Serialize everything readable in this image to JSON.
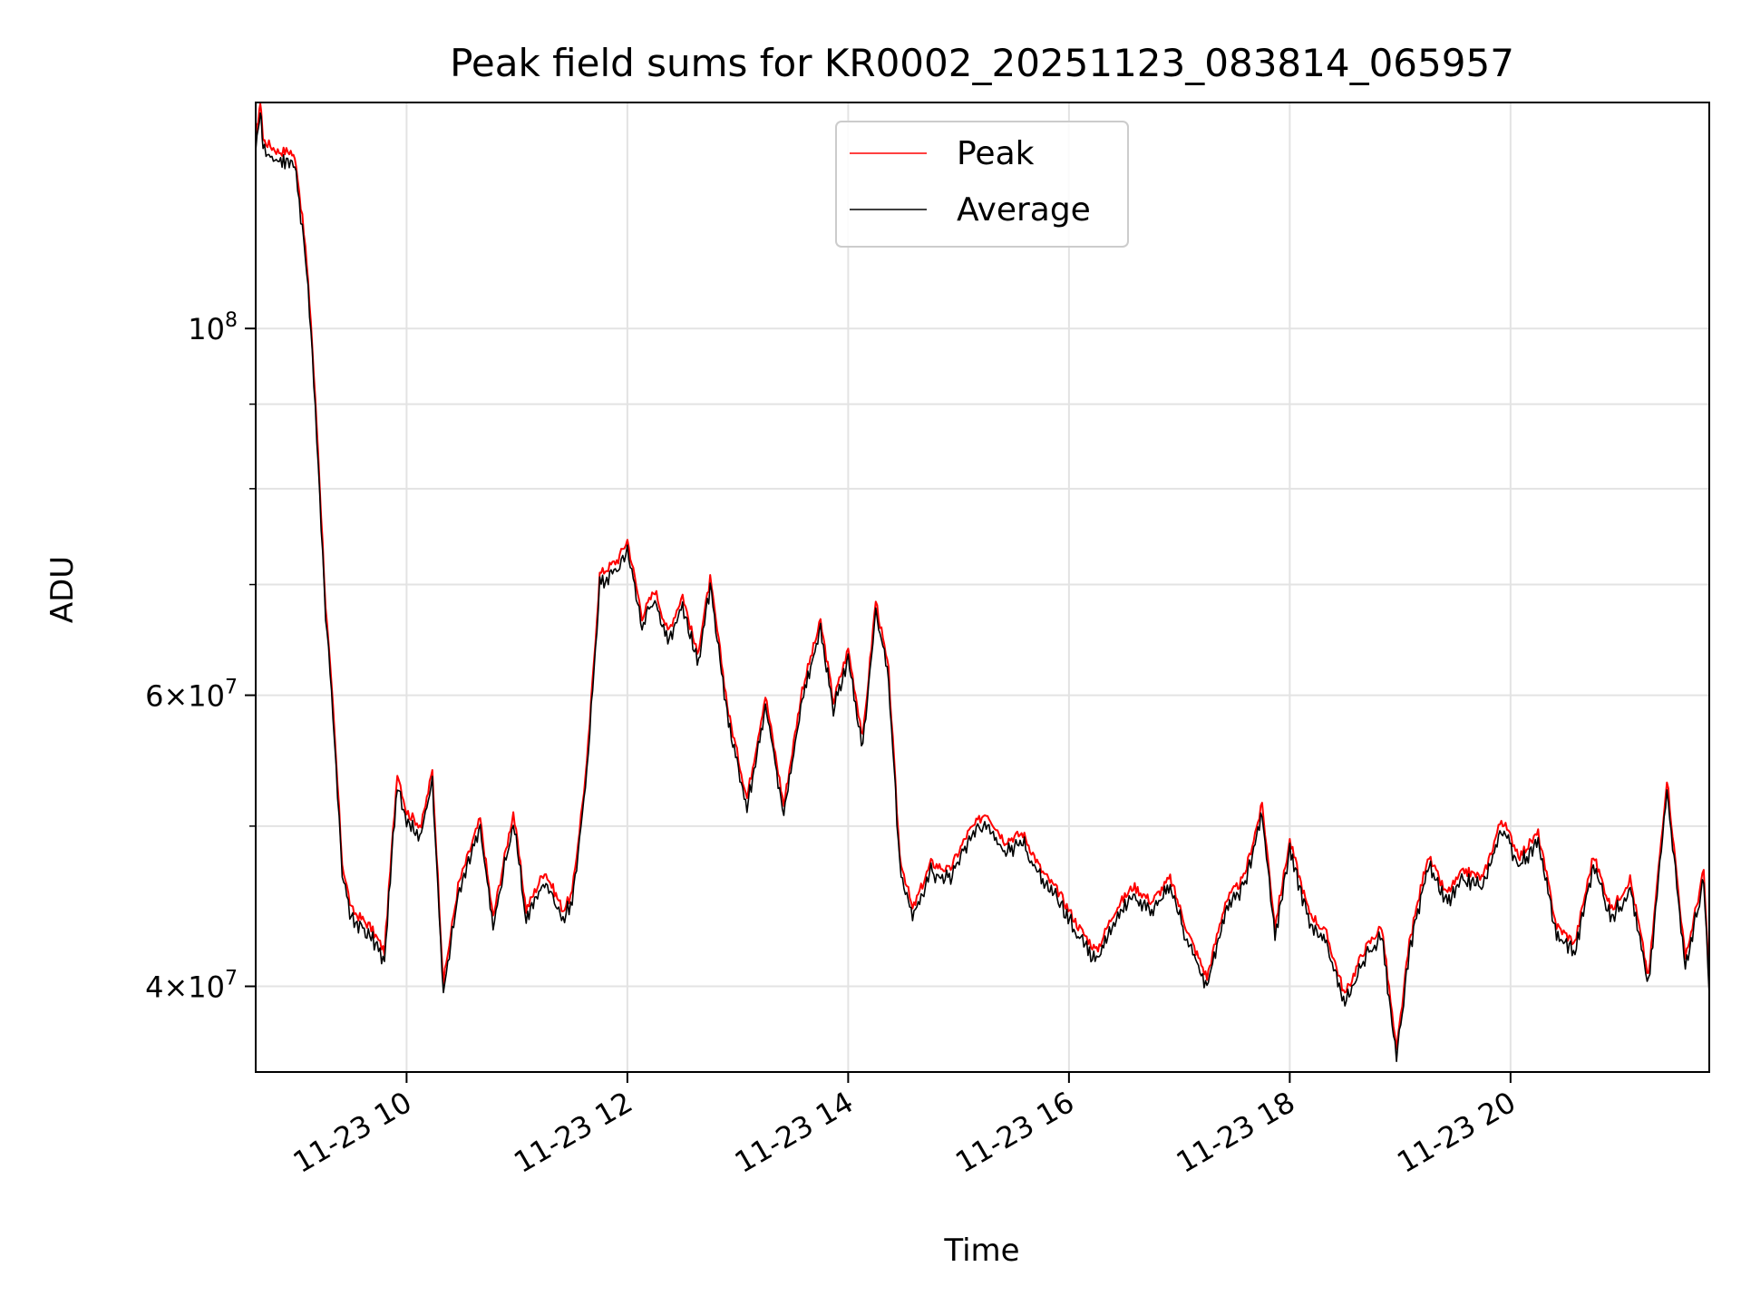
{
  "chart_data": {
    "type": "line",
    "title": "Peak field sums for KR0002_20251123_083814_065957",
    "xlabel": "Time",
    "ylabel": "ADU",
    "yscale": "log",
    "xlim": [
      "2025-11-23 08:38",
      "2025-11-23 21:48"
    ],
    "ylim": [
      35500000,
      137000000
    ],
    "grid": true,
    "legend_position": "top-center",
    "x_ticks": [
      {
        "value": "2025-11-23 10:00",
        "label": "11-23 10"
      },
      {
        "value": "2025-11-23 12:00",
        "label": "11-23 12"
      },
      {
        "value": "2025-11-23 14:00",
        "label": "11-23 14"
      },
      {
        "value": "2025-11-23 16:00",
        "label": "11-23 16"
      },
      {
        "value": "2025-11-23 18:00",
        "label": "11-23 18"
      },
      {
        "value": "2025-11-23 20:00",
        "label": "11-23 20"
      }
    ],
    "y_major_ticks": [
      {
        "value": 40000000,
        "base": "4",
        "exp": "7"
      },
      {
        "value": 60000000,
        "base": "6",
        "exp": "7"
      },
      {
        "value": 100000000,
        "base": "",
        "exp": "8"
      }
    ],
    "y_minor_ticks": [
      50000000,
      70000000,
      80000000,
      90000000
    ],
    "series": [
      {
        "name": "Peak",
        "color": "#ff0000",
        "points": [
          [
            "2025-11-23 08:38",
            130000000
          ],
          [
            "2025-11-23 08:40",
            136000000
          ],
          [
            "2025-11-23 08:41",
            136000000
          ],
          [
            "2025-11-23 08:42",
            130000000
          ],
          [
            "2025-11-23 08:50",
            128000000
          ],
          [
            "2025-11-23 08:57",
            128000000
          ],
          [
            "2025-11-23 09:00",
            126000000
          ],
          [
            "2025-11-23 09:05",
            112000000
          ],
          [
            "2025-11-23 09:08",
            101000000
          ],
          [
            "2025-11-23 09:12",
            84000000
          ],
          [
            "2025-11-23 09:16",
            68000000
          ],
          [
            "2025-11-23 09:20",
            59000000
          ],
          [
            "2025-11-23 09:25",
            47500000
          ],
          [
            "2025-11-23 09:30",
            44500000
          ],
          [
            "2025-11-23 09:40",
            43500000
          ],
          [
            "2025-11-23 09:48",
            42000000
          ],
          [
            "2025-11-23 09:55",
            54000000
          ],
          [
            "2025-11-23 10:00",
            51000000
          ],
          [
            "2025-11-23 10:08",
            50000000
          ],
          [
            "2025-11-23 10:14",
            54000000
          ],
          [
            "2025-11-23 10:20",
            40200000
          ],
          [
            "2025-11-23 10:28",
            46000000
          ],
          [
            "2025-11-23 10:40",
            50500000
          ],
          [
            "2025-11-23 10:47",
            44000000
          ],
          [
            "2025-11-23 10:58",
            51000000
          ],
          [
            "2025-11-23 11:05",
            44500000
          ],
          [
            "2025-11-23 11:15",
            47000000
          ],
          [
            "2025-11-23 11:25",
            44500000
          ],
          [
            "2025-11-23 11:30",
            45500000
          ],
          [
            "2025-11-23 11:38",
            54500000
          ],
          [
            "2025-11-23 11:45",
            71000000
          ],
          [
            "2025-11-23 11:55",
            72500000
          ],
          [
            "2025-11-23 12:00",
            74500000
          ],
          [
            "2025-11-23 12:08",
            67000000
          ],
          [
            "2025-11-23 12:15",
            69500000
          ],
          [
            "2025-11-23 12:22",
            65500000
          ],
          [
            "2025-11-23 12:30",
            69000000
          ],
          [
            "2025-11-23 12:38",
            63500000
          ],
          [
            "2025-11-23 12:45",
            70500000
          ],
          [
            "2025-11-23 12:55",
            58500000
          ],
          [
            "2025-11-23 13:05",
            52000000
          ],
          [
            "2025-11-23 13:15",
            60000000
          ],
          [
            "2025-11-23 13:25",
            51500000
          ],
          [
            "2025-11-23 13:35",
            60500000
          ],
          [
            "2025-11-23 13:45",
            66500000
          ],
          [
            "2025-11-23 13:52",
            59500000
          ],
          [
            "2025-11-23 14:00",
            64000000
          ],
          [
            "2025-11-23 14:08",
            56500000
          ],
          [
            "2025-11-23 14:15",
            68500000
          ],
          [
            "2025-11-23 14:22",
            62000000
          ],
          [
            "2025-11-23 14:28",
            48000000
          ],
          [
            "2025-11-23 14:35",
            44500000
          ],
          [
            "2025-11-23 14:45",
            47500000
          ],
          [
            "2025-11-23 14:55",
            47000000
          ],
          [
            "2025-11-23 15:05",
            49500000
          ],
          [
            "2025-11-23 15:15",
            51000000
          ],
          [
            "2025-11-23 15:25",
            49000000
          ],
          [
            "2025-11-23 15:35",
            49500000
          ],
          [
            "2025-11-23 15:45",
            47000000
          ],
          [
            "2025-11-23 15:55",
            45500000
          ],
          [
            "2025-11-23 16:05",
            43500000
          ],
          [
            "2025-11-23 16:15",
            42000000
          ],
          [
            "2025-11-23 16:25",
            44500000
          ],
          [
            "2025-11-23 16:35",
            46000000
          ],
          [
            "2025-11-23 16:45",
            45000000
          ],
          [
            "2025-11-23 16:55",
            46500000
          ],
          [
            "2025-11-23 17:05",
            43000000
          ],
          [
            "2025-11-23 17:15",
            40500000
          ],
          [
            "2025-11-23 17:25",
            45000000
          ],
          [
            "2025-11-23 17:35",
            46500000
          ],
          [
            "2025-11-23 17:45",
            51500000
          ],
          [
            "2025-11-23 17:52",
            43500000
          ],
          [
            "2025-11-23 18:00",
            49000000
          ],
          [
            "2025-11-23 18:10",
            44500000
          ],
          [
            "2025-11-23 18:20",
            43000000
          ],
          [
            "2025-11-23 18:30",
            39500000
          ],
          [
            "2025-11-23 18:40",
            42000000
          ],
          [
            "2025-11-23 18:50",
            43500000
          ],
          [
            "2025-11-23 18:58",
            36500000
          ],
          [
            "2025-11-23 19:05",
            42500000
          ],
          [
            "2025-11-23 19:15",
            48000000
          ],
          [
            "2025-11-23 19:25",
            45500000
          ],
          [
            "2025-11-23 19:35",
            47000000
          ],
          [
            "2025-11-23 19:45",
            46500000
          ],
          [
            "2025-11-23 19:55",
            50500000
          ],
          [
            "2025-11-23 20:05",
            48000000
          ],
          [
            "2025-11-23 20:15",
            49500000
          ],
          [
            "2025-11-23 20:25",
            43500000
          ],
          [
            "2025-11-23 20:35",
            42500000
          ],
          [
            "2025-11-23 20:45",
            48000000
          ],
          [
            "2025-11-23 20:55",
            44500000
          ],
          [
            "2025-11-23 21:05",
            46500000
          ],
          [
            "2025-11-23 21:15",
            40500000
          ],
          [
            "2025-11-23 21:25",
            53500000
          ],
          [
            "2025-11-23 21:35",
            41500000
          ],
          [
            "2025-11-23 21:45",
            47000000
          ],
          [
            "2025-11-23 21:48",
            40000000
          ]
        ]
      },
      {
        "name": "Average",
        "color": "#000000",
        "points": []
      }
    ]
  }
}
